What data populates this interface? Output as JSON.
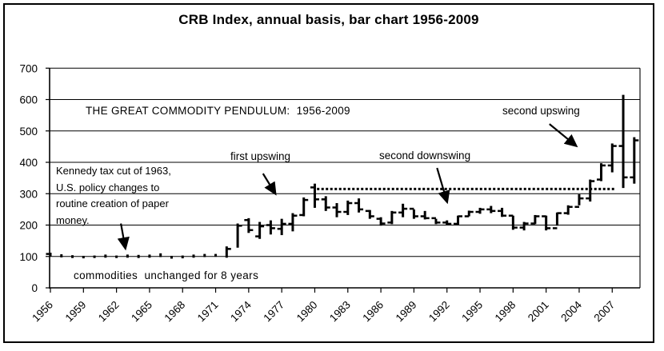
{
  "window": {
    "title": "CRB Index, annual basis, bar chart 1956-2009"
  },
  "chart_data": {
    "type": "bar",
    "subtype": "annual high-low (OHLC-style) range bars",
    "title": "CRB Index, annual basis, bar chart 1956-2009",
    "xlabel": "",
    "ylabel": "",
    "ylim": [
      0,
      700
    ],
    "xlim": [
      1956,
      2010
    ],
    "grid": "horizontal gridlines at every 100",
    "legend": "none",
    "y_ticks": [
      0,
      100,
      200,
      300,
      400,
      500,
      600,
      700
    ],
    "x_ticks": [
      1956,
      1959,
      1962,
      1965,
      1968,
      1971,
      1974,
      1977,
      1980,
      1983,
      1986,
      1989,
      1992,
      1995,
      1998,
      2001,
      2004,
      2007
    ],
    "resistance_line": {
      "value": 315,
      "from_year": 1980.2,
      "to_year": 2007.2,
      "style": "dotted"
    },
    "series": [
      {
        "year": 1956,
        "low": 100,
        "high": 112,
        "open": 108
      },
      {
        "year": 1957,
        "low": 97,
        "high": 107
      },
      {
        "year": 1958,
        "low": 95,
        "high": 104
      },
      {
        "year": 1959,
        "low": 94,
        "high": 102
      },
      {
        "year": 1960,
        "low": 95,
        "high": 103
      },
      {
        "year": 1961,
        "low": 96,
        "high": 106
      },
      {
        "year": 1962,
        "low": 95,
        "high": 103
      },
      {
        "year": 1963,
        "low": 96,
        "high": 106
      },
      {
        "year": 1964,
        "low": 95,
        "high": 105
      },
      {
        "year": 1965,
        "low": 96,
        "high": 106
      },
      {
        "year": 1966,
        "low": 98,
        "high": 110
      },
      {
        "year": 1967,
        "low": 93,
        "high": 102
      },
      {
        "year": 1968,
        "low": 94,
        "high": 103
      },
      {
        "year": 1969,
        "low": 96,
        "high": 106
      },
      {
        "year": 1970,
        "low": 98,
        "high": 108
      },
      {
        "year": 1971,
        "low": 99,
        "high": 108
      },
      {
        "year": 1972,
        "low": 96,
        "high": 132,
        "close": 124
      },
      {
        "year": 1973,
        "low": 128,
        "high": 205,
        "close": 198
      },
      {
        "year": 1974,
        "low": 175,
        "high": 222,
        "open": 216,
        "close": 184
      },
      {
        "year": 1975,
        "low": 156,
        "high": 210,
        "open": 164,
        "close": 196
      },
      {
        "year": 1976,
        "low": 170,
        "high": 215,
        "open": 200,
        "close": 190
      },
      {
        "year": 1977,
        "low": 168,
        "high": 220,
        "open": 188,
        "close": 204
      },
      {
        "year": 1978,
        "low": 180,
        "high": 238,
        "open": 204,
        "close": 230
      },
      {
        "year": 1979,
        "low": 228,
        "high": 288,
        "open": 232,
        "close": 280
      },
      {
        "year": 1980,
        "low": 255,
        "high": 332,
        "open": 320,
        "close": 282
      },
      {
        "year": 1981,
        "low": 245,
        "high": 292,
        "open": 282,
        "close": 256
      },
      {
        "year": 1982,
        "low": 225,
        "high": 270,
        "open": 256,
        "close": 242
      },
      {
        "year": 1983,
        "low": 232,
        "high": 278,
        "open": 242,
        "close": 270
      },
      {
        "year": 1984,
        "low": 240,
        "high": 285,
        "open": 270,
        "close": 250
      },
      {
        "year": 1985,
        "low": 220,
        "high": 248,
        "open": 245,
        "close": 228
      },
      {
        "year": 1986,
        "low": 198,
        "high": 225,
        "open": 220,
        "close": 205
      },
      {
        "year": 1987,
        "low": 203,
        "high": 245,
        "open": 208,
        "close": 240
      },
      {
        "year": 1988,
        "low": 225,
        "high": 268,
        "open": 240,
        "close": 252
      },
      {
        "year": 1989,
        "low": 220,
        "high": 250,
        "open": 252,
        "close": 228
      },
      {
        "year": 1990,
        "low": 218,
        "high": 245,
        "open": 228,
        "close": 222
      },
      {
        "year": 1991,
        "low": 203,
        "high": 220,
        "open": 222,
        "close": 208
      },
      {
        "year": 1992,
        "low": 199,
        "high": 215,
        "open": 208,
        "close": 204
      },
      {
        "year": 1993,
        "low": 199,
        "high": 230,
        "open": 204,
        "close": 228
      },
      {
        "year": 1994,
        "low": 228,
        "high": 246,
        "open": 228,
        "close": 242
      },
      {
        "year": 1995,
        "low": 236,
        "high": 255,
        "open": 242,
        "close": 250
      },
      {
        "year": 1996,
        "low": 238,
        "high": 261,
        "open": 250,
        "close": 245
      },
      {
        "year": 1997,
        "low": 226,
        "high": 255,
        "open": 245,
        "close": 230
      },
      {
        "year": 1998,
        "low": 185,
        "high": 230,
        "open": 230,
        "close": 192
      },
      {
        "year": 1999,
        "low": 183,
        "high": 210,
        "open": 192,
        "close": 205
      },
      {
        "year": 2000,
        "low": 203,
        "high": 232,
        "open": 205,
        "close": 228
      },
      {
        "year": 2001,
        "low": 183,
        "high": 230,
        "open": 228,
        "close": 190
      },
      {
        "year": 2002,
        "low": 198,
        "high": 240,
        "open": 190,
        "close": 238
      },
      {
        "year": 2003,
        "low": 233,
        "high": 263,
        "open": 238,
        "close": 258
      },
      {
        "year": 2004,
        "low": 263,
        "high": 298,
        "open": 258,
        "close": 285
      },
      {
        "year": 2005,
        "low": 275,
        "high": 345,
        "open": 285,
        "close": 340
      },
      {
        "year": 2006,
        "low": 340,
        "high": 397,
        "open": 345,
        "close": 390
      },
      {
        "year": 2007,
        "low": 368,
        "high": 460,
        "open": 390,
        "close": 452
      },
      {
        "year": 2008,
        "low": 318,
        "high": 615,
        "open": 452,
        "close": 352
      },
      {
        "year": 2009,
        "low": 332,
        "high": 480,
        "open": 352,
        "close": 470
      }
    ],
    "annotations": [
      {
        "id": "pendulum",
        "text": "THE GREAT COMMODITY PENDULUM:  1956-2009"
      },
      {
        "id": "kennedy",
        "text": "Kennedy tax cut of 1963,\nU.S. policy changes to\nroutine creation of paper\nmoney.",
        "arrow": {
          "x1": 1962.4,
          "y1": 205,
          "x2": 1962.8,
          "y2": 127
        }
      },
      {
        "id": "commodities",
        "text": "commodities  unchanged for 8 years"
      },
      {
        "id": "first-upswing",
        "text": "first upswing",
        "arrow": {
          "x1": 1975.3,
          "y1": 364,
          "x2": 1976.4,
          "y2": 301
        }
      },
      {
        "id": "second-downswing",
        "text": "second downswing",
        "arrow": {
          "x1": 1991.1,
          "y1": 382,
          "x2": 1992.0,
          "y2": 275
        }
      },
      {
        "id": "second-upswing",
        "text": "second upswing",
        "arrow": {
          "x1": 2001.3,
          "y1": 522,
          "x2": 2003.7,
          "y2": 453
        }
      }
    ],
    "colors": {
      "foreground": "#000000",
      "background": "#ffffff"
    }
  }
}
